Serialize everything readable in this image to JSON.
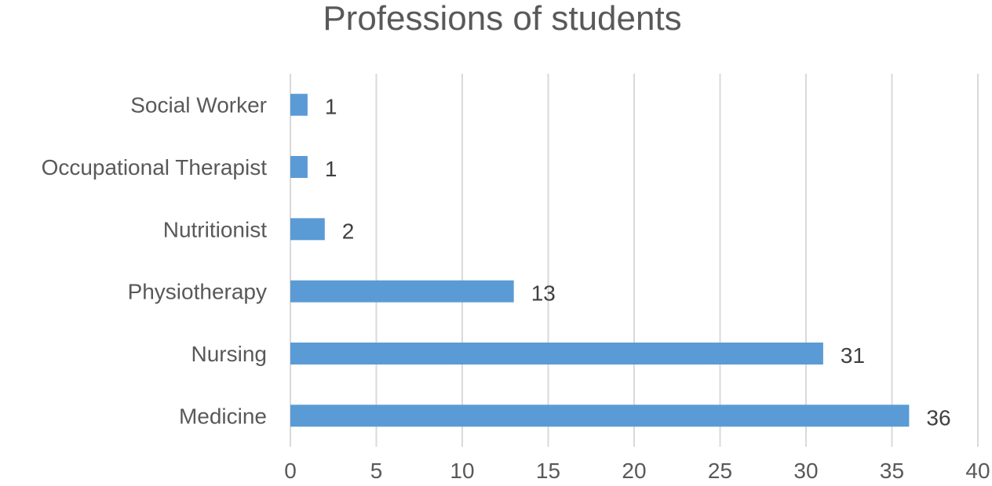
{
  "chart_data": {
    "type": "bar",
    "orientation": "horizontal",
    "title": "Professions of students",
    "categories": [
      "Social Worker",
      "Occupational Therapist",
      "Nutritionist",
      "Physiotherapy",
      "Nursing",
      "Medicine"
    ],
    "values": [
      1,
      1,
      2,
      13,
      31,
      36
    ],
    "data_labels": [
      "1",
      "1",
      "2",
      "13",
      "31",
      "36"
    ],
    "xlim": [
      0,
      40
    ],
    "x_ticks": [
      "0",
      "5",
      "10",
      "15",
      "20",
      "25",
      "30",
      "35",
      "40"
    ],
    "xlabel": "",
    "ylabel": "",
    "grid": "vertical",
    "legend": "none",
    "bar_color": "#5B9BD5"
  }
}
